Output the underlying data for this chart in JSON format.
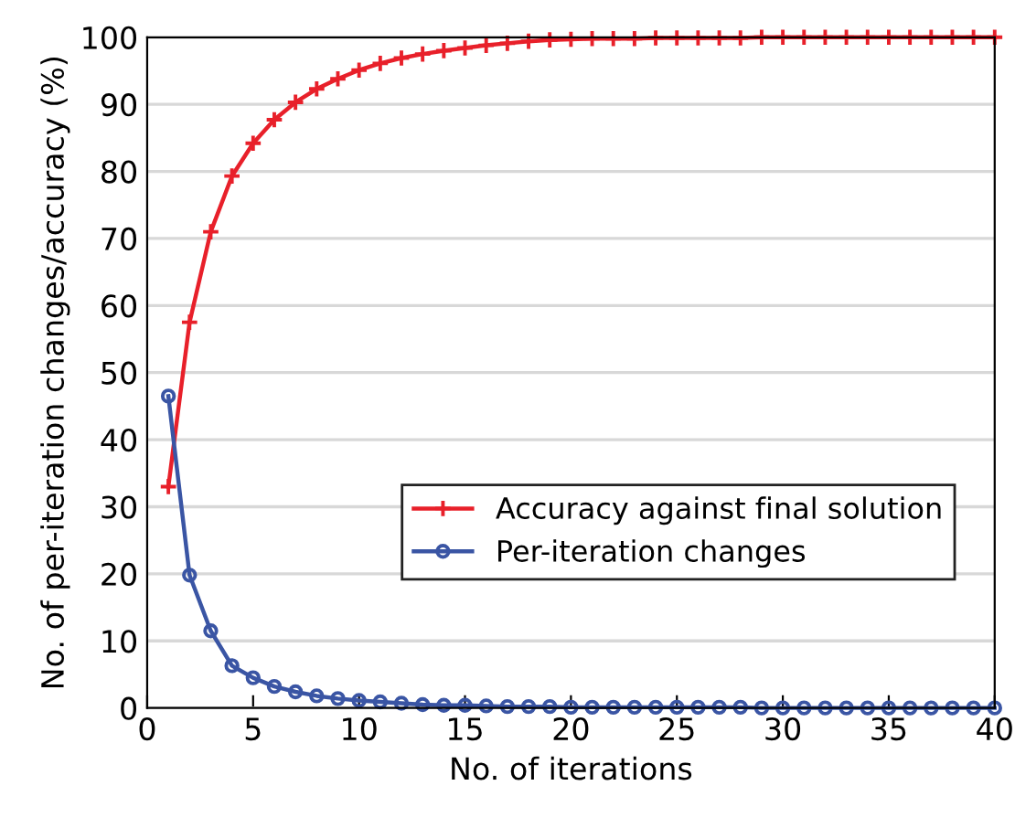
{
  "chart_data": {
    "type": "line",
    "xlabel": "No. of iterations",
    "ylabel": "No. of per-iteration changes/accuracy (%)",
    "x": [
      1,
      2,
      3,
      4,
      5,
      6,
      7,
      8,
      9,
      10,
      11,
      12,
      13,
      14,
      15,
      16,
      17,
      18,
      19,
      20,
      21,
      22,
      23,
      24,
      25,
      26,
      27,
      28,
      29,
      30,
      31,
      32,
      33,
      34,
      35,
      36,
      37,
      38,
      39,
      40
    ],
    "series": [
      {
        "name": "Accuracy against final solution",
        "color": "#e8202a",
        "marker": "cross",
        "values": [
          33,
          57.5,
          71,
          79.3,
          84.2,
          87.7,
          90.3,
          92.3,
          93.8,
          95.1,
          96.1,
          96.9,
          97.5,
          98.0,
          98.4,
          98.8,
          99.1,
          99.4,
          99.6,
          99.7,
          99.8,
          99.8,
          99.8,
          99.9,
          99.9,
          99.9,
          99.9,
          99.9,
          100,
          100,
          100,
          100,
          100,
          100,
          100,
          100,
          100,
          100,
          100,
          100
        ]
      },
      {
        "name": "Per-iteration changes",
        "color": "#3a55a4",
        "marker": "circle",
        "values": [
          46.5,
          19.8,
          11.5,
          6.3,
          4.5,
          3.2,
          2.4,
          1.8,
          1.4,
          1.1,
          0.9,
          0.7,
          0.5,
          0.4,
          0.4,
          0.3,
          0.2,
          0.2,
          0.2,
          0.1,
          0.1,
          0.1,
          0.1,
          0.1,
          0.1,
          0.1,
          0.1,
          0.1,
          0,
          0,
          0,
          0,
          0,
          0,
          0,
          0,
          0,
          0,
          0,
          0
        ]
      }
    ],
    "xlim": [
      0,
      40
    ],
    "xticks": [
      0,
      5,
      10,
      15,
      20,
      25,
      30,
      35,
      40
    ],
    "ylim": [
      0,
      100
    ],
    "yticks": [
      0,
      10,
      20,
      30,
      40,
      50,
      60,
      70,
      80,
      90,
      100
    ],
    "grid": "y",
    "legend": "bottom right",
    "line_style": "solid"
  }
}
